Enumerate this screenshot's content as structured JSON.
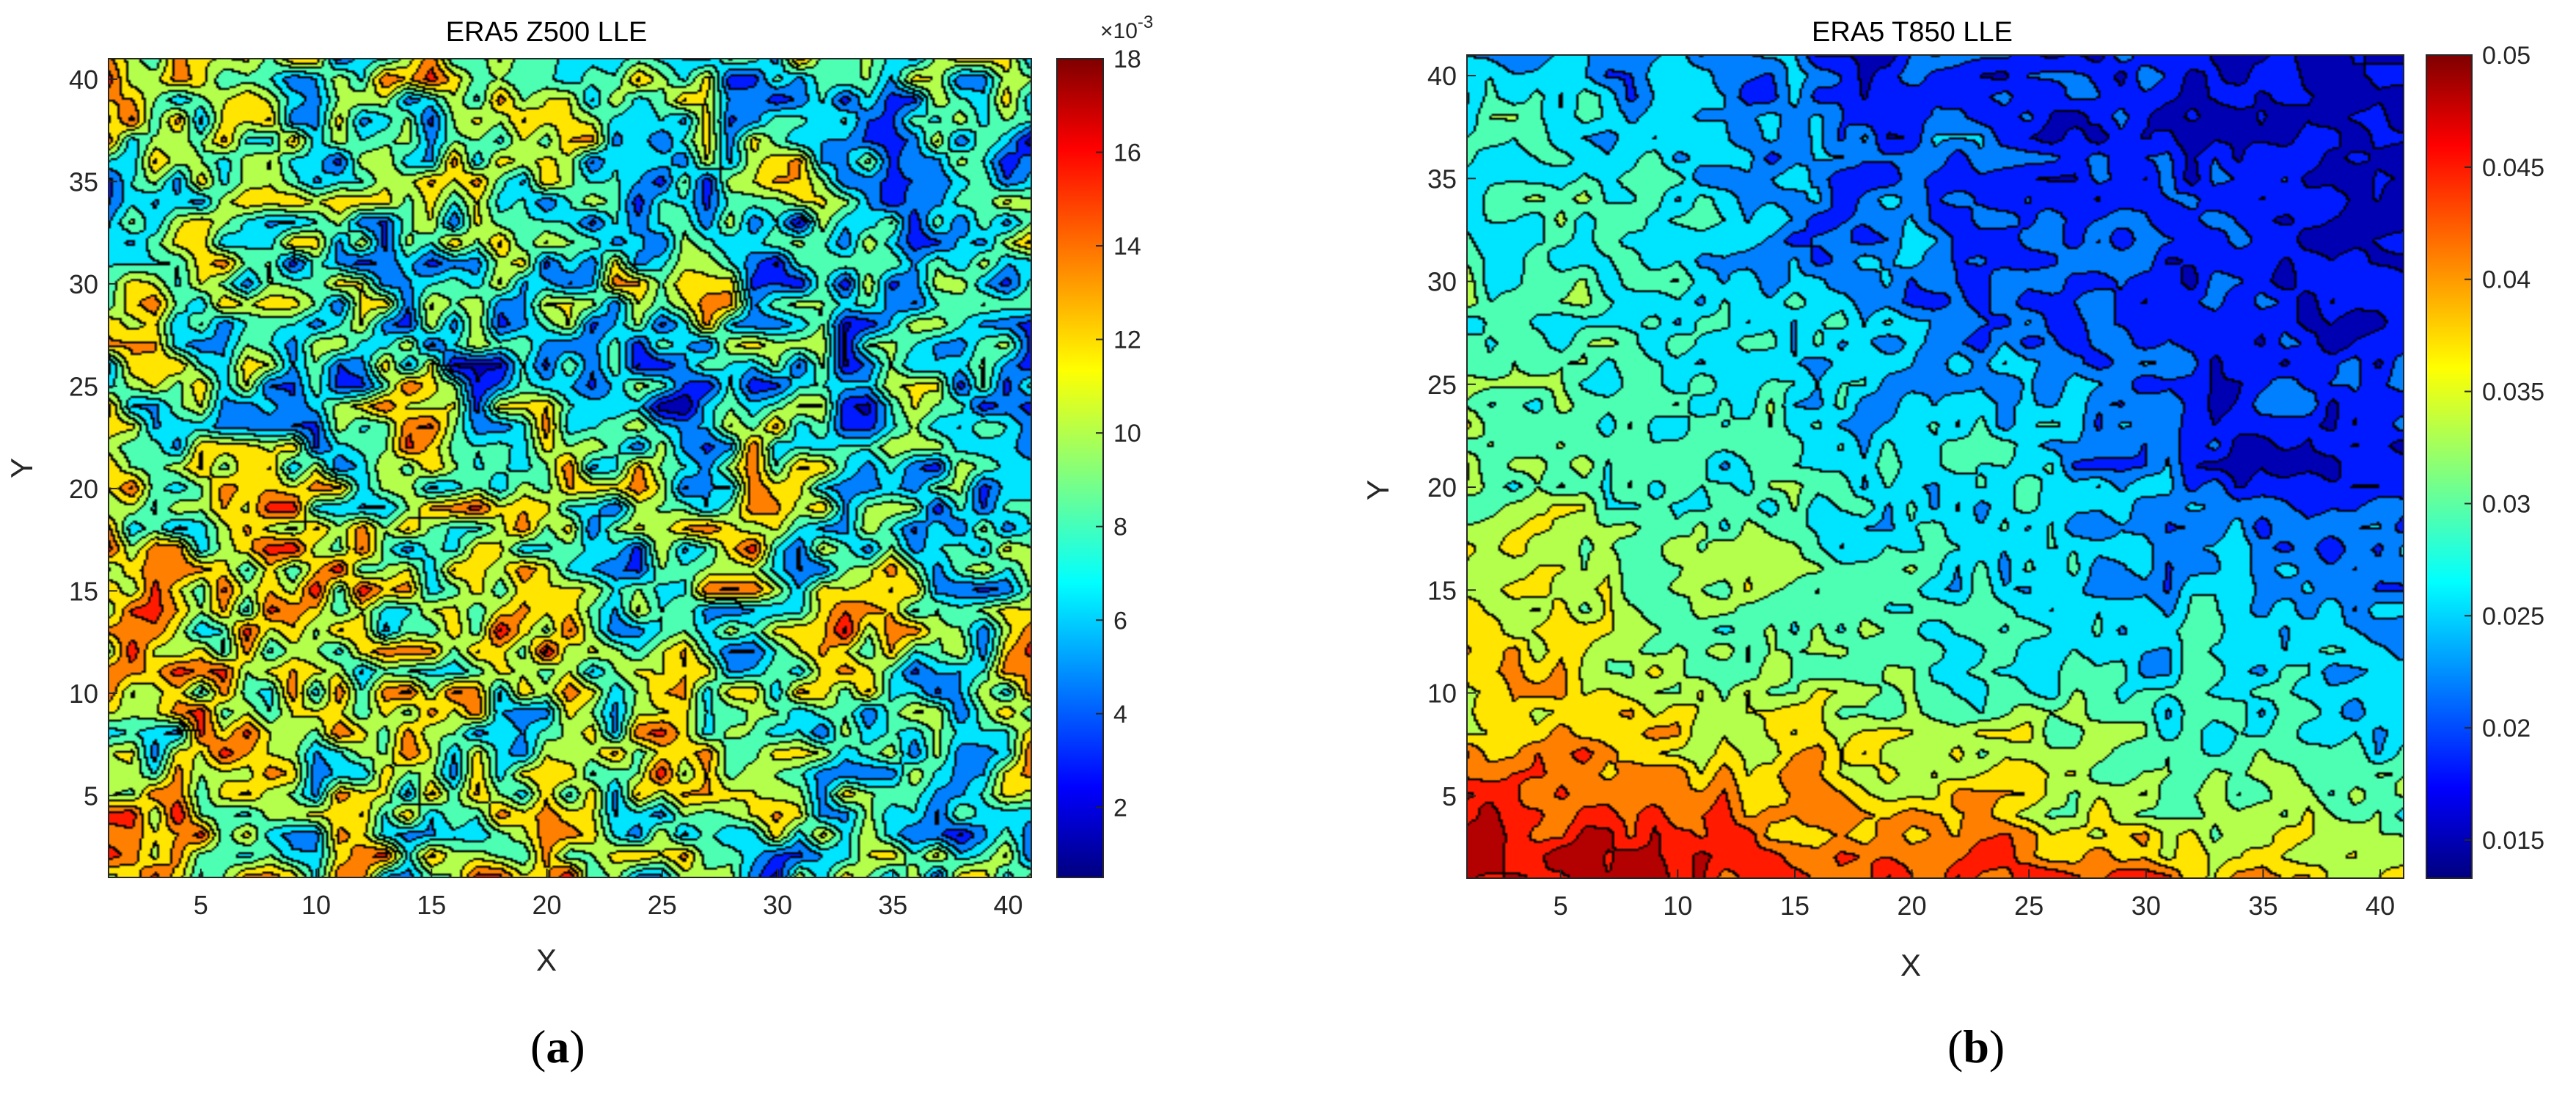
{
  "chart_data": [
    {
      "type": "heatmap",
      "subtitle": "contour",
      "title": "ERA5 Z500 LLE",
      "xlabel": "X",
      "ylabel": "Y",
      "xlim": [
        1,
        41
      ],
      "ylim": [
        1,
        41
      ],
      "xticks": [
        "5",
        "10",
        "15",
        "20",
        "25",
        "30",
        "35",
        "40"
      ],
      "yticks": [
        "5",
        "10",
        "15",
        "20",
        "25",
        "30",
        "35",
        "40"
      ],
      "colorbar": {
        "range": [
          0.0005,
          0.018
        ],
        "ticks": [
          "2",
          "4",
          "6",
          "8",
          "10",
          "12",
          "14",
          "16",
          "18"
        ],
        "exponent": "×10",
        "exponent_power": "-3",
        "colormap": "jet"
      },
      "grid": false,
      "panel_label": "a"
    },
    {
      "type": "heatmap",
      "subtitle": "contour",
      "title": "ERA5 T850 LLE",
      "xlabel": "X",
      "ylabel": "Y",
      "xlim": [
        1,
        41
      ],
      "ylim": [
        1,
        41
      ],
      "xticks": [
        "5",
        "10",
        "15",
        "20",
        "25",
        "30",
        "35",
        "40"
      ],
      "yticks": [
        "5",
        "10",
        "15",
        "20",
        "25",
        "30",
        "35",
        "40"
      ],
      "colorbar": {
        "range": [
          0.0133,
          0.05
        ],
        "ticks": [
          "0.015",
          "0.02",
          "0.025",
          "0.03",
          "0.035",
          "0.04",
          "0.045",
          "0.05"
        ],
        "colormap": "jet"
      },
      "grid": false,
      "panel_label": "b"
    }
  ]
}
